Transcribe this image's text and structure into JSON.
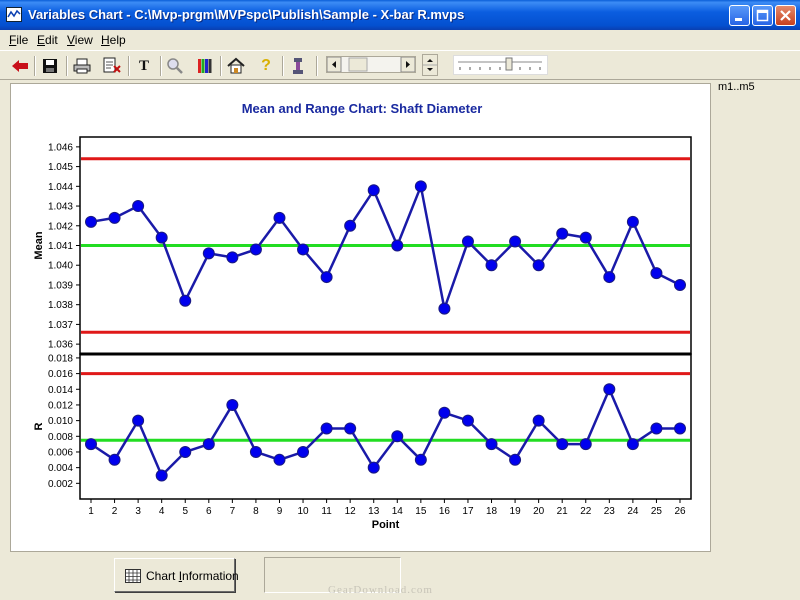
{
  "window": {
    "title": "Variables Chart - C:\\Mvp-prgm\\MVPspc\\Publish\\Sample -  X-bar R.mvps"
  },
  "menu": [
    {
      "hot": "F",
      "rest": "ile"
    },
    {
      "hot": "E",
      "rest": "dit"
    },
    {
      "hot": "V",
      "rest": "iew"
    },
    {
      "hot": "H",
      "rest": "elp"
    }
  ],
  "toolbar": {
    "icons": [
      "back-arrow-icon",
      "save-icon",
      "print-icon",
      "print-preview-icon",
      "text-icon",
      "zoom-icon",
      "color-bars-icon",
      "home-icon",
      "help-icon",
      "tool-icon"
    ],
    "text_icon_glyph": "T",
    "help_icon_glyph": "?"
  },
  "right_panel": {
    "label": "m1..m5"
  },
  "bottom": {
    "chart_info_hot": "I",
    "chart_info_before": "Chart ",
    "chart_info_after": "nformation",
    "watermark": "GearDownload.com"
  },
  "chart_data": {
    "type": "line",
    "title": "Mean and Range Chart: Shaft Diameter",
    "xlabel": "Point",
    "x": [
      1,
      2,
      3,
      4,
      5,
      6,
      7,
      8,
      9,
      10,
      11,
      12,
      13,
      14,
      15,
      16,
      17,
      18,
      19,
      20,
      21,
      22,
      23,
      24,
      25,
      26
    ],
    "mean": {
      "ylabel": "Mean",
      "ylim": [
        1.0355,
        1.0465
      ],
      "yticks": [
        "1.036",
        "1.037",
        "1.038",
        "1.039",
        "1.040",
        "1.041",
        "1.042",
        "1.043",
        "1.044",
        "1.045",
        "1.046"
      ],
      "values": [
        1.0422,
        1.0424,
        1.043,
        1.0414,
        1.0382,
        1.0406,
        1.0404,
        1.0408,
        1.0424,
        1.0408,
        1.0394,
        1.042,
        1.0438,
        1.041,
        1.044,
        1.0378,
        1.0412,
        1.04,
        1.0412,
        1.04,
        1.0416,
        1.0414,
        1.0394,
        1.0422,
        1.0396,
        1.039
      ],
      "ucl": 1.0454,
      "center": 1.041,
      "lcl": 1.0366
    },
    "range": {
      "ylabel": "R",
      "ylim": [
        0.0,
        0.0185
      ],
      "yticks": [
        "0.002",
        "0.004",
        "0.006",
        "0.008",
        "0.010",
        "0.012",
        "0.014",
        "0.016",
        "0.018"
      ],
      "values": [
        0.007,
        0.005,
        0.01,
        0.003,
        0.006,
        0.007,
        0.012,
        0.006,
        0.005,
        0.006,
        0.009,
        0.009,
        0.004,
        0.008,
        0.005,
        0.011,
        0.01,
        0.007,
        0.005,
        0.01,
        0.007,
        0.007,
        0.014,
        0.007,
        0.009,
        0.009
      ],
      "ucl": 0.016,
      "center": 0.0075
    },
    "colors": {
      "series": "#1a1aa8",
      "marker": "#0000ee",
      "limit": "#e01818",
      "center": "#22dd22",
      "title": "#1a2aa0"
    },
    "grid": false,
    "legend": "none"
  }
}
